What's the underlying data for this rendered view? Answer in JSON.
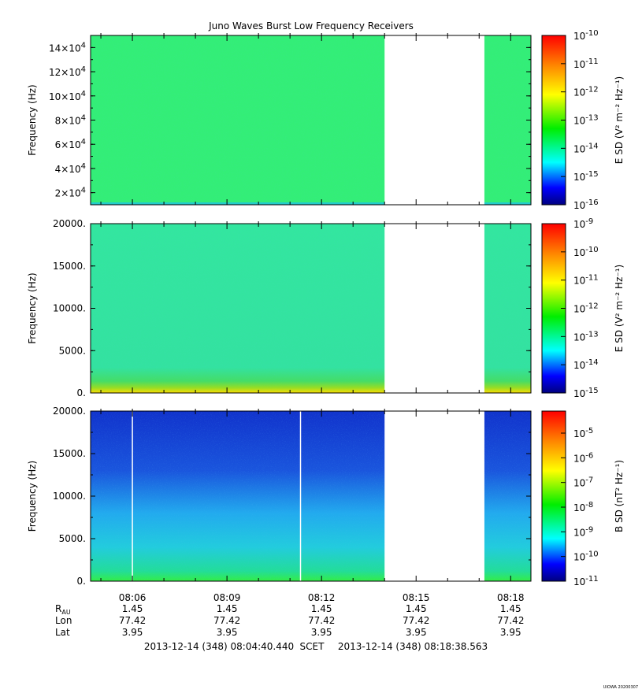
{
  "title": "Juno Waves Burst Low Frequency Receivers",
  "footer": {
    "range_start": "2013-12-14 (348) 08:04:40.440",
    "scet": "SCET",
    "range_end": "2013-12-14 (348) 08:18:38.563",
    "credit": "UIOWA 20200307"
  },
  "chart_data": [
    {
      "type": "heatmap",
      "ylabel": "Frequency (Hz)",
      "yscale": "linear",
      "ylim": [
        10000,
        150000
      ],
      "yticks": [
        {
          "value": 20000,
          "mant": "2×10",
          "exp": "4"
        },
        {
          "value": 40000,
          "mant": "4×10",
          "exp": "4"
        },
        {
          "value": 60000,
          "mant": "6×10",
          "exp": "4"
        },
        {
          "value": 80000,
          "mant": "8×10",
          "exp": "4"
        },
        {
          "value": 100000,
          "mant": "10×10",
          "exp": "4"
        },
        {
          "value": 120000,
          "mant": "12×10",
          "exp": "4"
        },
        {
          "value": 140000,
          "mant": "14×10",
          "exp": "4"
        }
      ],
      "colorbar_label": "E SD (V² m⁻² Hz⁻¹)",
      "colorbar_ticks": [
        {
          "mant": "10",
          "exp": "-10"
        },
        {
          "mant": "10",
          "exp": "-11"
        },
        {
          "mant": "10",
          "exp": "-12"
        },
        {
          "mant": "10",
          "exp": "-13"
        },
        {
          "mant": "10",
          "exp": "-14"
        },
        {
          "mant": "10",
          "exp": "-15"
        },
        {
          "mant": "10",
          "exp": "-16"
        }
      ],
      "data_segments": [
        [
          "08:04:40",
          "08:14:00"
        ],
        [
          "08:17:10",
          "08:18:38"
        ]
      ],
      "fill": {
        "base": "#33ee77",
        "noise": "#22dd88",
        "bottom_band": "#22cccc"
      }
    },
    {
      "type": "heatmap",
      "ylabel": "Frequency (Hz)",
      "yscale": "linear",
      "ylim": [
        0,
        20000
      ],
      "yticks": [
        {
          "value": 0,
          "label": "0."
        },
        {
          "value": 5000,
          "label": "5000."
        },
        {
          "value": 10000,
          "label": "10000."
        },
        {
          "value": 15000,
          "label": "15000."
        },
        {
          "value": 20000,
          "label": "20000."
        }
      ],
      "colorbar_label": "E SD (V² m⁻² Hz⁻¹)",
      "colorbar_ticks": [
        {
          "mant": "10",
          "exp": "-9"
        },
        {
          "mant": "10",
          "exp": "-10"
        },
        {
          "mant": "10",
          "exp": "-11"
        },
        {
          "mant": "10",
          "exp": "-12"
        },
        {
          "mant": "10",
          "exp": "-13"
        },
        {
          "mant": "10",
          "exp": "-14"
        },
        {
          "mant": "10",
          "exp": "-15"
        }
      ],
      "data_segments": [
        [
          "08:04:40",
          "08:14:00"
        ],
        [
          "08:17:10",
          "08:18:38"
        ]
      ],
      "fill": {
        "base": "#33ddaa",
        "noise": "#22cc99",
        "bottom_band": "#ddcc22"
      }
    },
    {
      "type": "heatmap",
      "ylabel": "Frequency (Hz)",
      "yscale": "linear",
      "ylim": [
        0,
        20000
      ],
      "yticks": [
        {
          "value": 0,
          "label": "0."
        },
        {
          "value": 5000,
          "label": "5000."
        },
        {
          "value": 10000,
          "label": "10000."
        },
        {
          "value": 15000,
          "label": "15000."
        },
        {
          "value": 20000,
          "label": "20000."
        }
      ],
      "colorbar_label": "B SD (nT² Hz⁻¹)",
      "colorbar_ticks": [
        {
          "mant": "10",
          "exp": "-5"
        },
        {
          "mant": "10",
          "exp": "-6"
        },
        {
          "mant": "10",
          "exp": "-7"
        },
        {
          "mant": "10",
          "exp": "-8"
        },
        {
          "mant": "10",
          "exp": "-9"
        },
        {
          "mant": "10",
          "exp": "-10"
        },
        {
          "mant": "10",
          "exp": "-11"
        }
      ],
      "data_segments": [
        [
          "08:04:40",
          "08:14:00"
        ],
        [
          "08:17:10",
          "08:18:38"
        ]
      ],
      "gaps": [
        "08:06:00",
        "08:11:20"
      ],
      "fill": {
        "top": "#1133cc",
        "middle": "#22bbee",
        "bottom": "#22dd77"
      }
    }
  ],
  "xaxis": {
    "tick_labels": [
      "08:06",
      "08:09",
      "08:12",
      "08:15",
      "08:18"
    ],
    "rows": [
      {
        "label": "R",
        "label_sub": "AU",
        "values": [
          "1.45",
          "1.45",
          "1.45",
          "1.45",
          "1.45"
        ]
      },
      {
        "label": "Lon",
        "label_sub": "",
        "values": [
          "77.42",
          "77.42",
          "77.42",
          "77.42",
          "77.42"
        ]
      },
      {
        "label": "Lat",
        "label_sub": "",
        "values": [
          "3.95",
          "3.95",
          "3.95",
          "3.95",
          "3.95"
        ]
      }
    ]
  }
}
